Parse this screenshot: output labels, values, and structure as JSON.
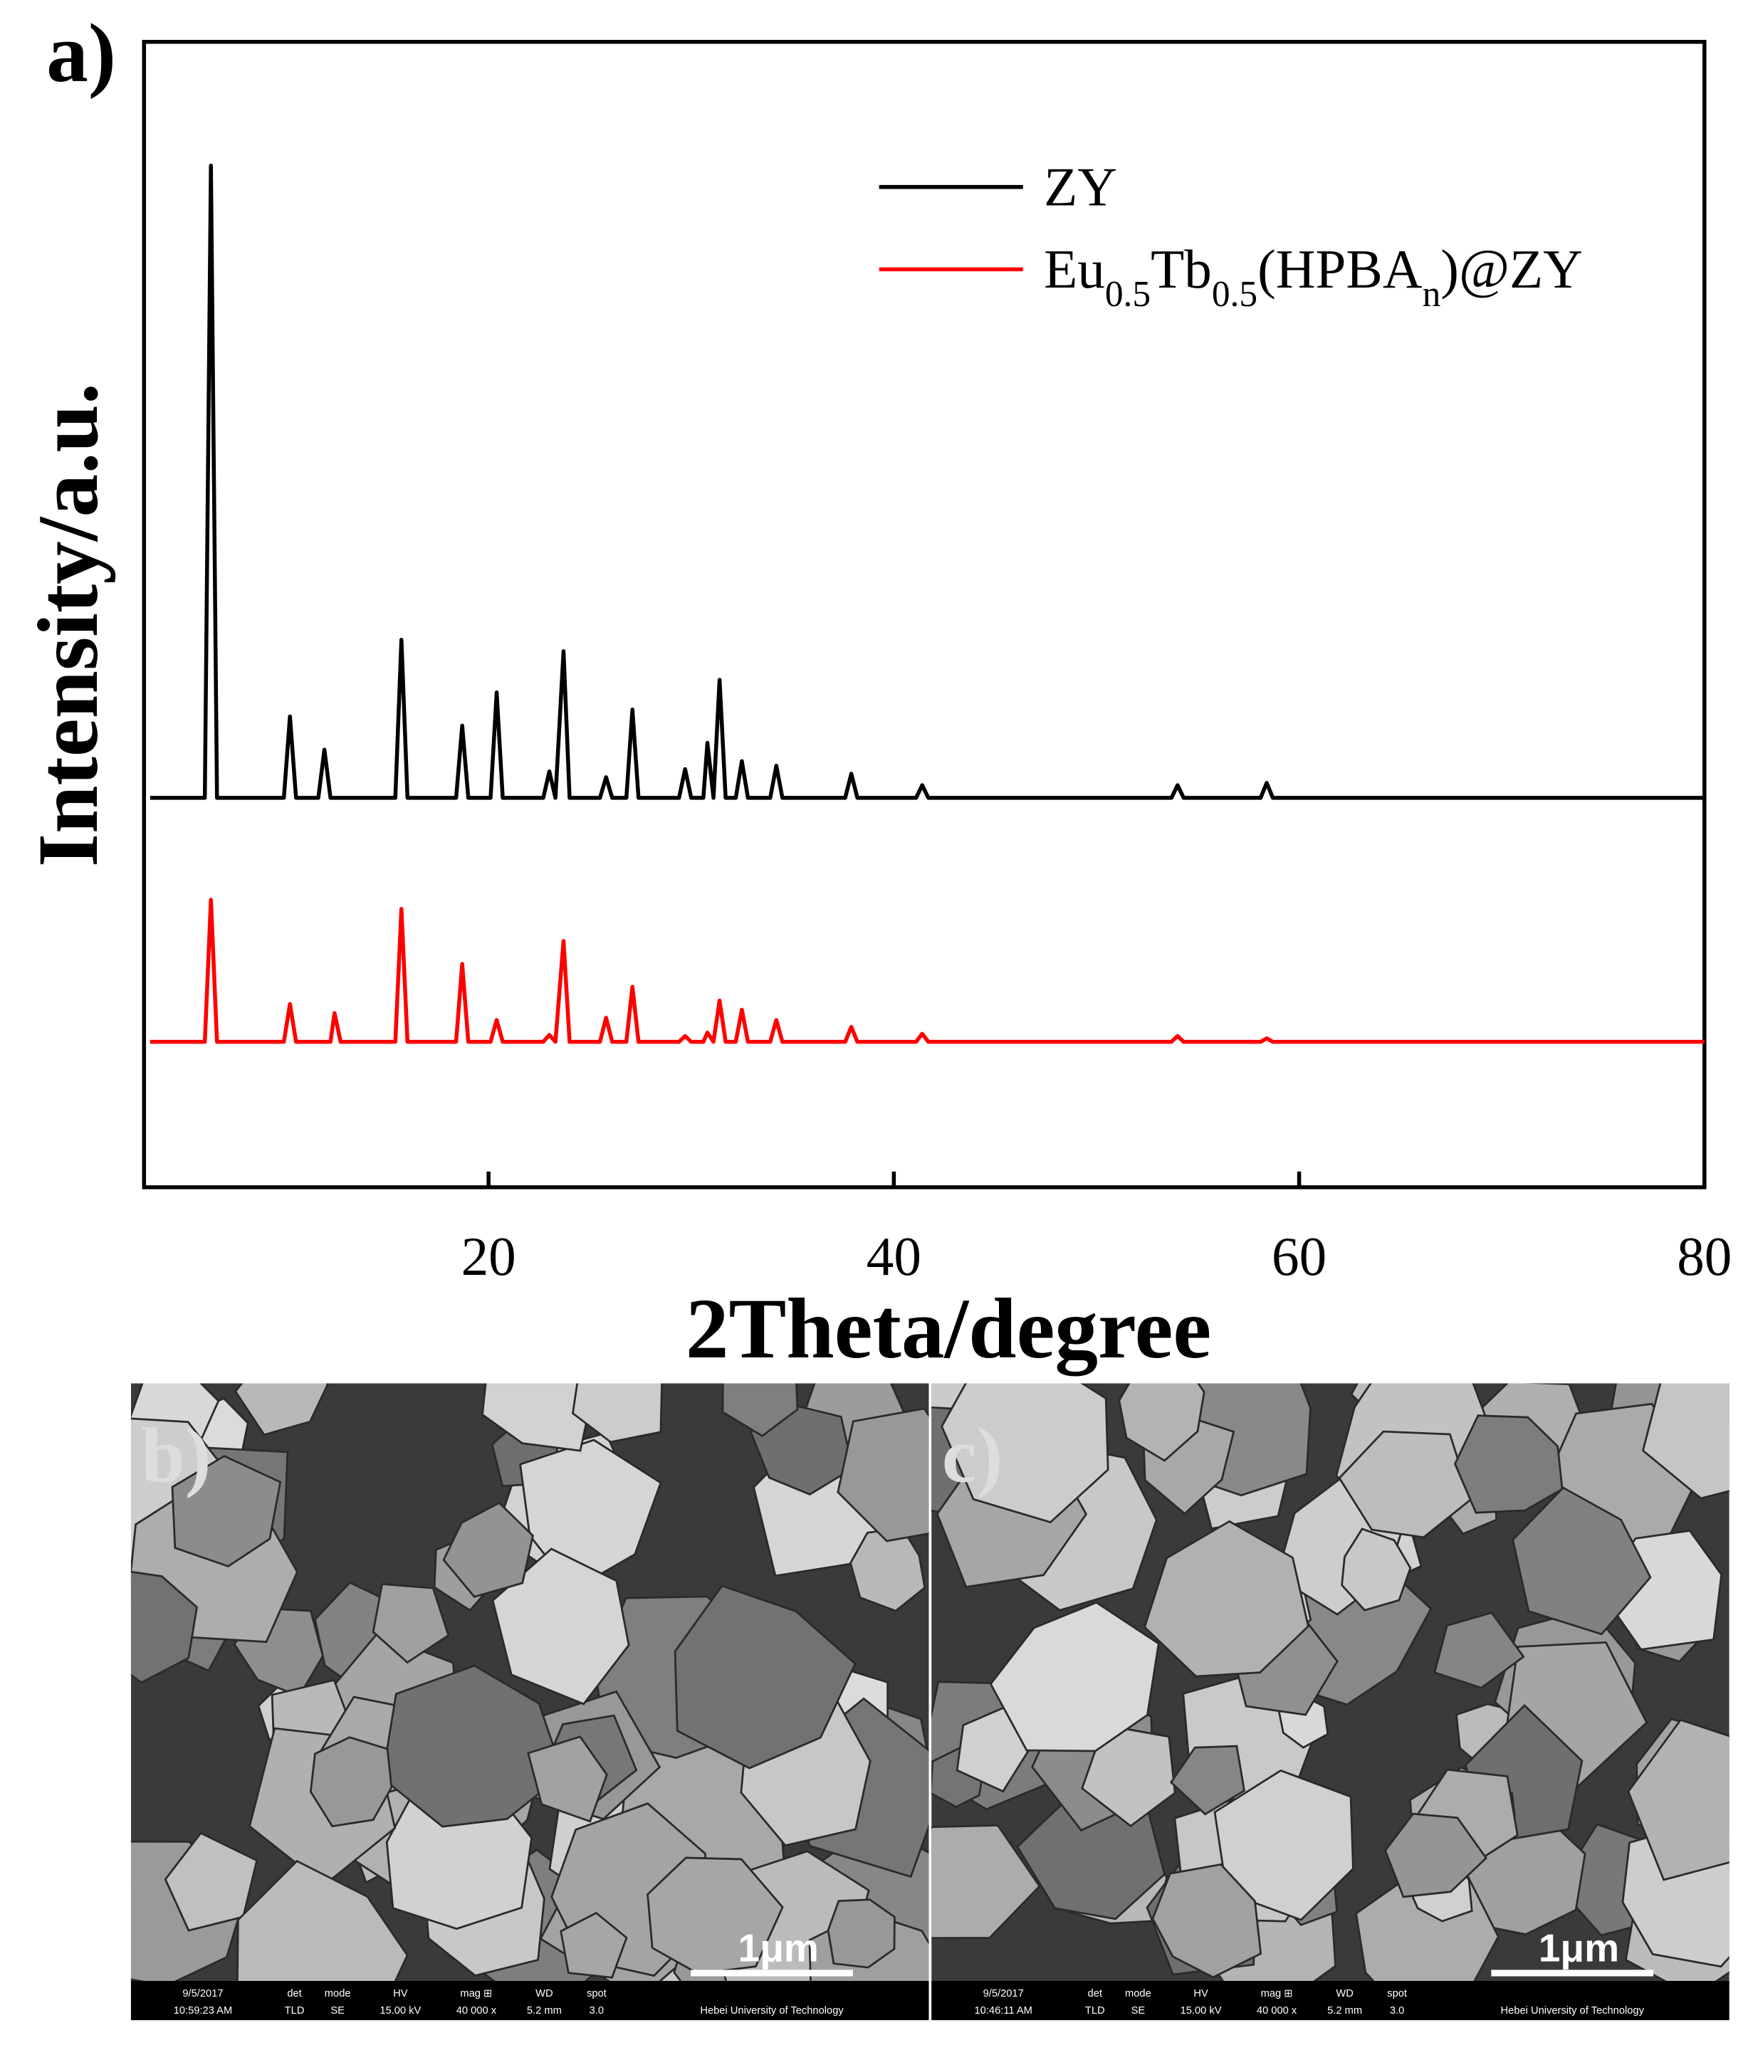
{
  "chart_data": {
    "type": "line",
    "panel_label": "a)",
    "x_label": "2Theta/degree",
    "y_label": "Intensity/a.u.",
    "xlim": [
      3,
      80
    ],
    "ylim": [
      0,
      100
    ],
    "xticks": [
      20,
      40,
      60,
      80
    ],
    "x": [
      3.3,
      6.0,
      6.3,
      6.6,
      9.9,
      10.2,
      10.5,
      11.6,
      11.9,
      12.2,
      12.4,
      12.7,
      15.4,
      15.7,
      16.0,
      18.4,
      18.7,
      19.0,
      20.1,
      20.4,
      20.7,
      22.7,
      23.0,
      23.3,
      23.7,
      24.0,
      25.5,
      25.8,
      26.1,
      26.8,
      27.1,
      27.4,
      29.4,
      29.7,
      30.0,
      30.6,
      30.8,
      31.1,
      31.4,
      31.7,
      32.2,
      32.5,
      32.8,
      33.9,
      34.2,
      34.5,
      37.6,
      37.9,
      38.2,
      41.1,
      41.4,
      41.7,
      53.7,
      54.0,
      54.3,
      58.1,
      58.4,
      58.7,
      80
    ],
    "series": [
      {
        "name": [
          {
            "text": "ZY"
          }
        ],
        "color": "#000000",
        "values": [
          34,
          34,
          89.2,
          34,
          34,
          41.1,
          34,
          34,
          38.2,
          34,
          34,
          34,
          34,
          47.8,
          34,
          34,
          40.3,
          34,
          34,
          43.2,
          34,
          34,
          36.3,
          34,
          46.8,
          34,
          34,
          35.8,
          34,
          34,
          41.7,
          34,
          34,
          36.5,
          34,
          34,
          38.8,
          34,
          44.3,
          34,
          34,
          37.2,
          34,
          34,
          36.8,
          34,
          34,
          36.1,
          34,
          34,
          35.1,
          34,
          34,
          35.1,
          34,
          34,
          35.3,
          34,
          34
        ]
      },
      {
        "name": [
          {
            "text": "Eu"
          },
          {
            "text": "0.5",
            "sub": true
          },
          {
            "text": "Tb"
          },
          {
            "text": "0.5",
            "sub": true
          },
          {
            "text": "(HPBA"
          },
          {
            "text": "n",
            "sub": true
          },
          {
            "text": ")@ZY"
          }
        ],
        "color": "#ff0000",
        "values": [
          12.7,
          12.7,
          25.1,
          12.7,
          12.7,
          16.0,
          12.7,
          12.7,
          12.7,
          12.7,
          15.2,
          12.7,
          12.7,
          24.3,
          12.7,
          12.7,
          19.5,
          12.7,
          12.7,
          14.6,
          12.7,
          12.7,
          13.3,
          12.7,
          21.5,
          12.7,
          12.7,
          14.8,
          12.7,
          12.7,
          17.5,
          12.7,
          12.7,
          13.2,
          12.7,
          12.7,
          13.5,
          12.7,
          16.3,
          12.7,
          12.7,
          15.5,
          12.7,
          12.7,
          14.6,
          12.7,
          12.7,
          14.0,
          12.7,
          12.7,
          13.4,
          12.7,
          12.7,
          13.2,
          12.7,
          12.7,
          13.0,
          12.7,
          12.7
        ]
      }
    ]
  },
  "sem_panels": [
    {
      "label": "b)",
      "scale_bar": "1μm",
      "date": "9/5/2017",
      "time": "10:59:23 AM",
      "info_headers": [
        "det",
        "mode",
        "HV",
        "mag ⊞",
        "WD",
        "spot"
      ],
      "info_values": [
        "TLD",
        "SE",
        "15.00 kV",
        "40 000 x",
        "5.2 mm",
        "3.0"
      ],
      "institution": "Hebei University of Technology"
    },
    {
      "label": "c)",
      "scale_bar": "1μm",
      "date": "9/5/2017",
      "time": "10:46:11 AM",
      "info_headers": [
        "det",
        "mode",
        "HV",
        "mag ⊞",
        "WD",
        "spot"
      ],
      "info_values": [
        "TLD",
        "SE",
        "15.00 kV",
        "40 000 x",
        "5.2 mm",
        "3.0"
      ],
      "institution": "Hebei University of Technology"
    }
  ]
}
